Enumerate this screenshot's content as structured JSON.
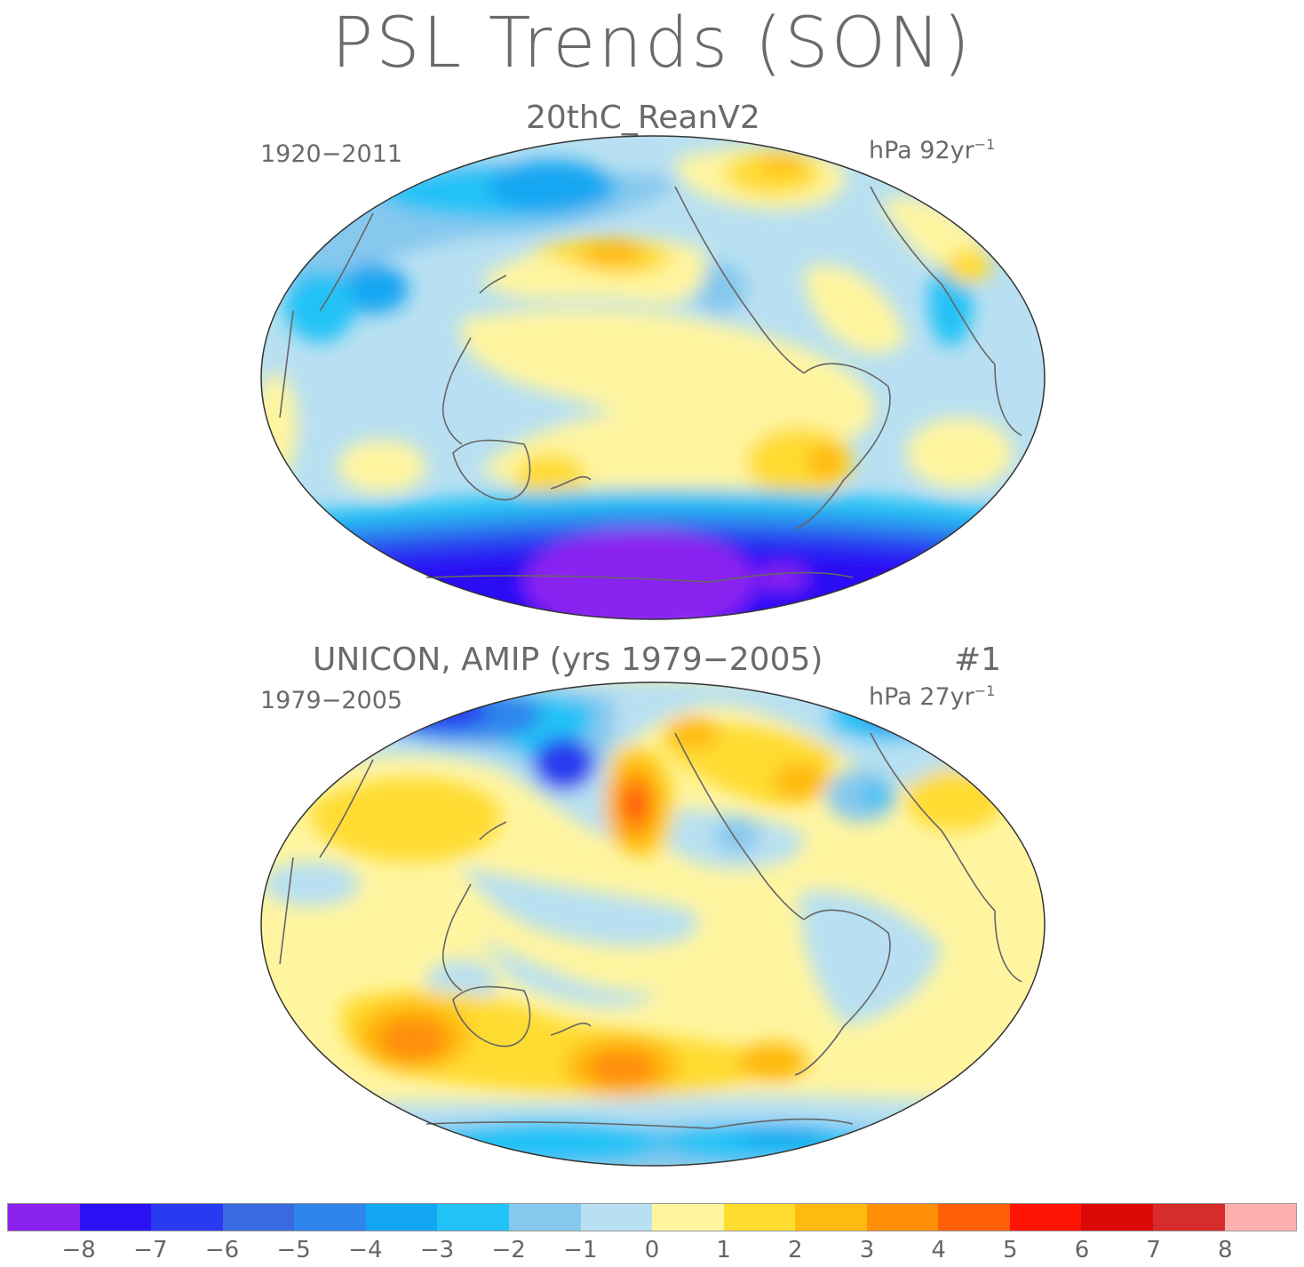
{
  "title": "PSL Trends (SON)",
  "panels": [
    {
      "title": "20thC_ReanV2",
      "period": "1920−2011",
      "units_prefix": "hPa 92yr",
      "units_exponent": "−1"
    },
    {
      "title": "UNICON, AMIP (yrs 1979−2005)",
      "run_label": "#1",
      "period": "1979−2005",
      "units_prefix": "hPa 27yr",
      "units_exponent": "−1"
    }
  ],
  "colorbar": {
    "colors": [
      "#8a22f0",
      "#2a10f5",
      "#2a3af0",
      "#3a6ae0",
      "#2e86ec",
      "#12a6f2",
      "#22c2f6",
      "#86c8ee",
      "#b8e0f2",
      "#fff5a0",
      "#ffdc30",
      "#ffba10",
      "#ff8e08",
      "#ff5e08",
      "#ff1406",
      "#dc0808",
      "#d62c2c",
      "#ffb0ae"
    ],
    "labels": [
      "−8",
      "−7",
      "−6",
      "−5",
      "−4",
      "−3",
      "−2",
      "−1",
      "0",
      "1",
      "2",
      "3",
      "4",
      "5",
      "6",
      "7",
      "8"
    ]
  }
}
